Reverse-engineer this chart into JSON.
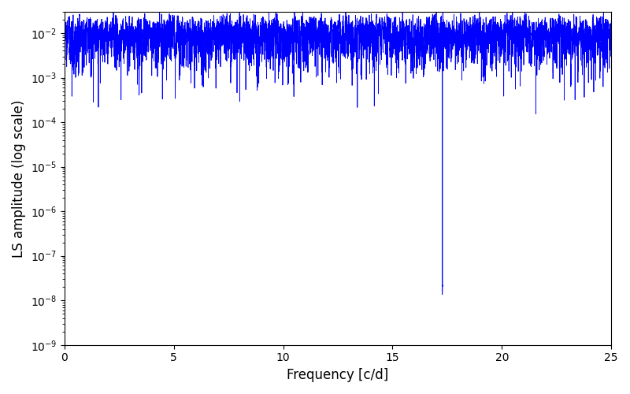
{
  "title": "",
  "xlabel": "Frequency [c/d]",
  "ylabel": "LS amplitude (log scale)",
  "line_color": "#0000ff",
  "line_width": 0.6,
  "xlim": [
    0,
    25
  ],
  "ylim": [
    1e-09,
    0.03
  ],
  "freq_min": 0.001,
  "freq_max": 25.0,
  "n_points": 10000,
  "seed": 7,
  "background_color": "#ffffff",
  "yscale": "log",
  "fig_width": 8.0,
  "fig_height": 5.0,
  "dpi": 100
}
